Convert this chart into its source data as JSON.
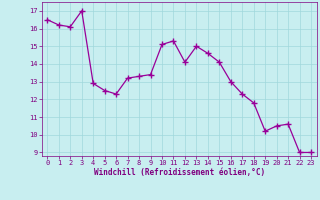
{
  "x": [
    0,
    1,
    2,
    3,
    4,
    5,
    6,
    7,
    8,
    9,
    10,
    11,
    12,
    13,
    14,
    15,
    16,
    17,
    18,
    19,
    20,
    21,
    22,
    23
  ],
  "y": [
    16.5,
    16.2,
    16.1,
    17.0,
    12.9,
    12.5,
    12.3,
    13.2,
    13.3,
    13.4,
    15.1,
    15.3,
    14.1,
    15.0,
    14.6,
    14.1,
    13.0,
    12.3,
    11.8,
    10.2,
    10.5,
    10.6,
    9.0,
    9.0
  ],
  "line_color": "#990099",
  "marker": "+",
  "marker_size": 4,
  "background_color": "#c8eef0",
  "grid_color": "#a0d8dc",
  "xlabel": "Windchill (Refroidissement éolien,°C)",
  "xlabel_color": "#800080",
  "tick_color": "#800080",
  "ylim": [
    8.8,
    17.5
  ],
  "xlim": [
    -0.5,
    23.5
  ],
  "yticks": [
    9,
    10,
    11,
    12,
    13,
    14,
    15,
    16,
    17
  ],
  "xticks": [
    0,
    1,
    2,
    3,
    4,
    5,
    6,
    7,
    8,
    9,
    10,
    11,
    12,
    13,
    14,
    15,
    16,
    17,
    18,
    19,
    20,
    21,
    22,
    23
  ],
  "figsize": [
    3.2,
    2.0
  ],
  "dpi": 100
}
